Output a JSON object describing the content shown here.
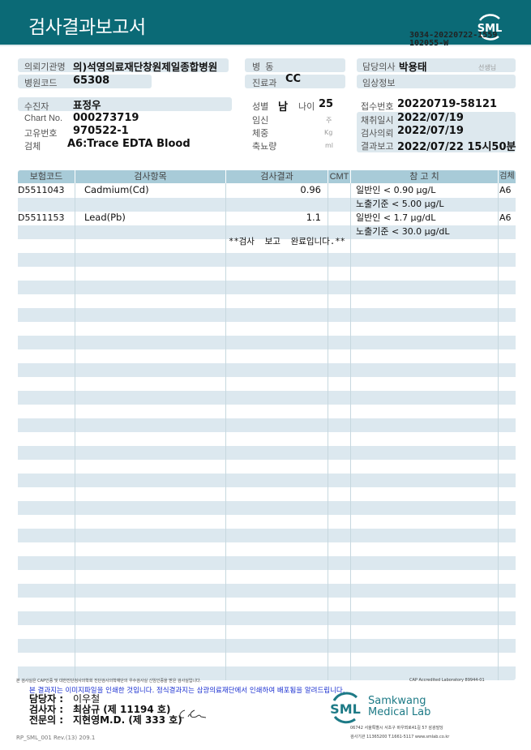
{
  "header": {
    "title": "검사결과보고서",
    "logo_text": "SML",
    "code_line1": "3034-20220722-1559",
    "code_line2": "102055-W",
    "band_color": "#0b6a76"
  },
  "info": {
    "org_label": "의뢰기관명",
    "org_value": "의)석영의료재단창원제일종합병원",
    "hospital_code_label": "병원코드",
    "hospital_code_value": "65308",
    "ward_label": "병  동",
    "dept_label": "진료과",
    "dept_value": "CC",
    "doctor_label": "담당의사",
    "doctor_value": "박용태",
    "doctor_suffix": "선생님",
    "clinical_label": "임상정보",
    "patient_label": "수진자",
    "patient_value": "표정우",
    "chart_label": "Chart No.",
    "chart_value": "000273719",
    "id_label": "고유번호",
    "id_value": "970522-1",
    "specimen_label": "검체",
    "specimen_value": "A6:Trace EDTA Blood",
    "sex_label": "성별",
    "sex_value": "남",
    "age_label": "나이",
    "age_value": "25",
    "pregnancy_label": "임신",
    "pregnancy_unit": "주",
    "weight_label": "체중",
    "weight_unit": "Kg",
    "urine_label": "축뇨량",
    "urine_unit": "ml",
    "receipt_label": "접수번호",
    "receipt_value": "20220719-58121",
    "collect_label": "채취일시",
    "collect_value": "2022/07/19",
    "request_label": "검사의뢰",
    "request_value": "2022/07/19",
    "report_label": "결과보고",
    "report_value": "2022/07/22 15시50분"
  },
  "table": {
    "headers": [
      "보험코드",
      "검사항목",
      "검사결과",
      "CMT",
      "참 고 치",
      "검체"
    ],
    "rows": [
      {
        "code": "D5511043",
        "item": "Cadmium(Cd)",
        "result": "0.96",
        "cmt": "",
        "ref": "일반인 < 0.90 μg/L",
        "specimen": "A6"
      },
      {
        "code": "",
        "item": "",
        "result": "",
        "cmt": "",
        "ref": "노출기준 < 5.00 μg/L",
        "specimen": ""
      },
      {
        "code": "D5511153",
        "item": "Lead(Pb)",
        "result": "1.1",
        "cmt": "",
        "ref": "일반인 < 1.7 μg/dL",
        "specimen": "A6"
      },
      {
        "code": "",
        "item": "",
        "result": "",
        "cmt": "",
        "ref": "노출기준 < 30.0 μg/dL",
        "specimen": ""
      }
    ],
    "completion": "**검사  보고  완료입니다.**",
    "header_color": "#a8cbd8",
    "stripe_color": "#dce8ef"
  },
  "footer": {
    "cert_note": "본 검사실은 CAP인증 및 대한진단검사의학회 진단검사의학재단의 우수검사실 신임인증을 받은 검사실입니다.",
    "cap": "CAP Accredited Laboratory 89944-01",
    "notice": "본 결과지는 이미지파일을 인쇄한 것입니다. 정식결과지는 삼광의료재단에서 인쇄하여 배포됨을 알려드립니다.",
    "manager_label": "담당자 :",
    "manager_value": "이우철",
    "tester_label": "검사자 :",
    "tester_value": "최삼규 (제 11194 호)",
    "specialist_label": "전문의 :",
    "specialist_value": "지현영M.D. (제 333 호)",
    "form_code": "RP_SML_001 Rev.(13) 209.1",
    "lab_logo": "SML",
    "lab_name1": "Samkwang",
    "lab_name2": "Medical Lab",
    "address": "06742 서울특별시 서초구 바우뫼로41길 57 삼광빌딩",
    "contact": "검사기관 11365200 T.1661-5117 www.smlab.co.kr"
  }
}
